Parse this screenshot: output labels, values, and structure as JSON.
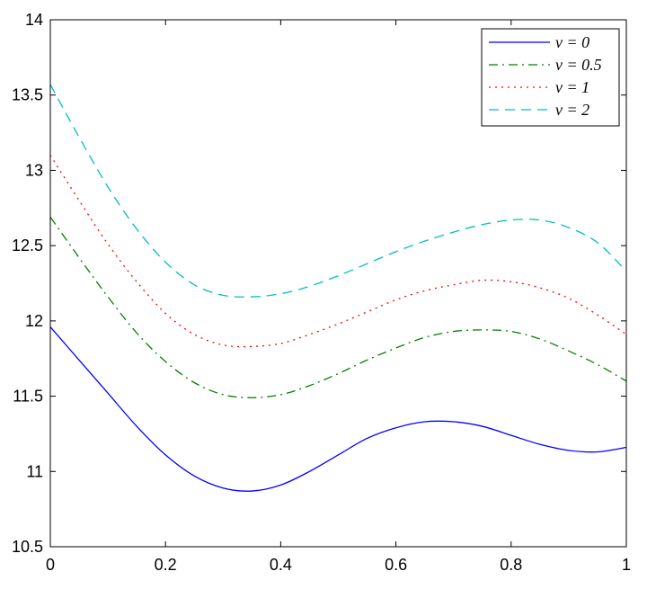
{
  "chart_data": {
    "type": "line",
    "title": "",
    "xlabel": "",
    "ylabel": "",
    "xlim": [
      0,
      1
    ],
    "ylim": [
      10.5,
      14
    ],
    "grid": false,
    "legend_position": "top-right",
    "x_ticks": [
      "0",
      "0.2",
      "0.4",
      "0.6",
      "0.8",
      "1"
    ],
    "y_ticks": [
      "10.5",
      "11",
      "11.5",
      "12",
      "12.5",
      "13",
      "13.5",
      "14"
    ],
    "x": [
      0,
      0.05,
      0.1,
      0.15,
      0.2,
      0.25,
      0.3,
      0.35,
      0.4,
      0.45,
      0.5,
      0.55,
      0.6,
      0.65,
      0.7,
      0.75,
      0.8,
      0.85,
      0.9,
      0.95,
      1.0
    ],
    "series": [
      {
        "name": "v = 0",
        "color": "#0000ff",
        "dash": "solid",
        "values": [
          11.96,
          11.74,
          11.52,
          11.3,
          11.11,
          10.97,
          10.89,
          10.87,
          10.91,
          11.0,
          11.11,
          11.22,
          11.29,
          11.33,
          11.33,
          11.3,
          11.24,
          11.18,
          11.14,
          11.13,
          11.16
        ]
      },
      {
        "name": "v = 0.5",
        "color": "#008000",
        "dash": "dashdot",
        "values": [
          12.69,
          12.42,
          12.16,
          11.92,
          11.73,
          11.59,
          11.51,
          11.49,
          11.51,
          11.57,
          11.65,
          11.74,
          11.82,
          11.89,
          11.93,
          11.94,
          11.93,
          11.88,
          11.8,
          11.71,
          11.6
        ]
      },
      {
        "name": "v = 1",
        "color": "#ff0000",
        "dash": "dotted",
        "values": [
          13.1,
          12.8,
          12.51,
          12.26,
          12.05,
          11.91,
          11.84,
          11.83,
          11.85,
          11.91,
          11.98,
          12.06,
          12.14,
          12.2,
          12.24,
          12.27,
          12.26,
          12.22,
          12.15,
          12.04,
          11.91
        ]
      },
      {
        "name": "v = 2",
        "color": "#00bfbf",
        "dash": "dashed",
        "values": [
          13.57,
          13.22,
          12.89,
          12.61,
          12.39,
          12.24,
          12.17,
          12.16,
          12.18,
          12.23,
          12.3,
          12.38,
          12.46,
          12.53,
          12.59,
          12.64,
          12.67,
          12.67,
          12.62,
          12.52,
          12.33
        ]
      }
    ]
  }
}
